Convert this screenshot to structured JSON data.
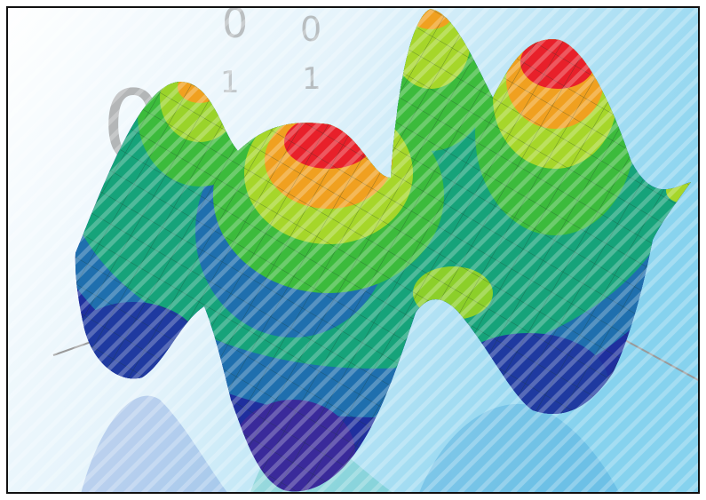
{
  "background_digits": [
    "0",
    "0",
    "0",
    "1",
    "1"
  ]
}
